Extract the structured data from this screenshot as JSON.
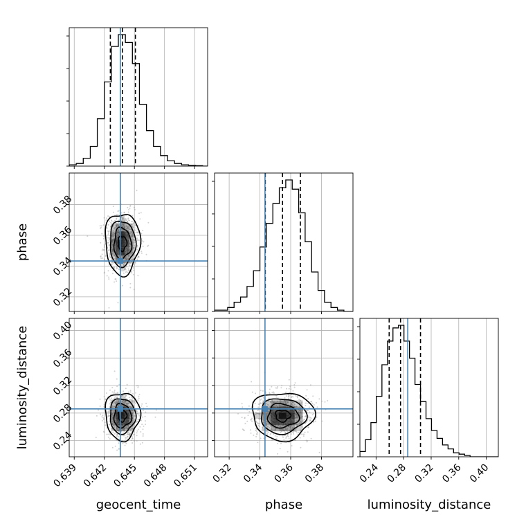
{
  "chart_data": {
    "type": "corner",
    "parameters": [
      "geocent_time",
      "phase",
      "luminosity_distance"
    ],
    "axes_labels": {
      "x": [
        "geocent_time",
        "phase",
        "luminosity_distance"
      ],
      "y": [
        "",
        "phase",
        "luminosity_distance"
      ]
    },
    "ranges": {
      "geocent_time": [
        0.6385,
        0.6523
      ],
      "phase": [
        0.3105,
        0.4005
      ],
      "luminosity_distance": [
        0.2165,
        0.4175
      ]
    },
    "ticks": {
      "geocent_time": [
        {
          "value": 0.639,
          "label": "0.639"
        },
        {
          "value": 0.642,
          "label": "0.642"
        },
        {
          "value": 0.645,
          "label": "0.645"
        },
        {
          "value": 0.648,
          "label": "0.648"
        },
        {
          "value": 0.651,
          "label": "0.651"
        }
      ],
      "phase": [
        {
          "value": 0.32,
          "label": "0.32"
        },
        {
          "value": 0.34,
          "label": "0.34"
        },
        {
          "value": 0.36,
          "label": "0.36"
        },
        {
          "value": 0.38,
          "label": "0.38"
        }
      ],
      "luminosity_distance": [
        {
          "value": 0.24,
          "label": "0.24"
        },
        {
          "value": 0.28,
          "label": "0.28"
        },
        {
          "value": 0.32,
          "label": "0.32"
        },
        {
          "value": 0.36,
          "label": "0.36"
        },
        {
          "value": 0.4,
          "label": "0.40"
        }
      ]
    },
    "truths": {
      "geocent_time": 0.6436,
      "phase": 0.3433,
      "luminosity_distance": 0.286
    },
    "quantiles": {
      "geocent_time": [
        0.6426,
        0.6438,
        0.6451
      ],
      "phase": [
        0.3435,
        0.3547,
        0.3663
      ],
      "luminosity_distance": [
        0.259,
        0.2755,
        0.3045
      ]
    },
    "histograms": {
      "geocent_time": {
        "edges": [
          0.6385,
          0.6392,
          0.6399,
          0.6406,
          0.6413,
          0.642,
          0.6427,
          0.6434,
          0.6441,
          0.6448,
          0.6455,
          0.6462,
          0.6469,
          0.6476,
          0.6483,
          0.649,
          0.6497,
          0.6504,
          0.6511,
          0.6518,
          0.6523
        ],
        "counts": [
          0.01,
          0.02,
          0.06,
          0.15,
          0.36,
          0.64,
          0.91,
          1.0,
          0.94,
          0.78,
          0.47,
          0.27,
          0.15,
          0.08,
          0.04,
          0.02,
          0.01,
          0.005,
          0.003,
          0.0
        ]
      },
      "phase": {
        "edges": [
          0.3105,
          0.3147,
          0.319,
          0.3232,
          0.3274,
          0.3316,
          0.3358,
          0.34,
          0.3442,
          0.3484,
          0.3526,
          0.3568,
          0.361,
          0.3652,
          0.3694,
          0.3736,
          0.3778,
          0.382,
          0.3862,
          0.3904,
          0.3946,
          0.4005
        ],
        "counts": [
          0.01,
          0.01,
          0.03,
          0.07,
          0.11,
          0.19,
          0.31,
          0.49,
          0.67,
          0.82,
          0.94,
          1.0,
          0.93,
          0.75,
          0.53,
          0.3,
          0.16,
          0.07,
          0.03,
          0.01,
          0.0
        ]
      },
      "luminosity_distance": {
        "edges": [
          0.2165,
          0.2245,
          0.2325,
          0.2405,
          0.2485,
          0.2565,
          0.2645,
          0.2725,
          0.2805,
          0.2885,
          0.2965,
          0.3045,
          0.3125,
          0.3205,
          0.3285,
          0.3365,
          0.3445,
          0.3525,
          0.3605,
          0.3685,
          0.3765,
          0.4175
        ],
        "counts": [
          0.04,
          0.13,
          0.26,
          0.46,
          0.7,
          0.88,
          0.98,
          1.0,
          0.88,
          0.75,
          0.55,
          0.42,
          0.29,
          0.2,
          0.14,
          0.09,
          0.06,
          0.03,
          0.02,
          0.01,
          0.0
        ]
      }
    },
    "gaussians": {
      "geocent_time": {
        "mean": 0.6438,
        "sd": 0.00075
      },
      "phase": {
        "mean": 0.3548,
        "sd": 0.0087
      },
      "luminosity_distance": {
        "mean": 0.276,
        "sd": 0.015
      }
    },
    "grid": true,
    "colors": {
      "truth": "#4682b4",
      "hist": "#000000",
      "points": "#999999",
      "grid": "#b0b0b0"
    }
  }
}
